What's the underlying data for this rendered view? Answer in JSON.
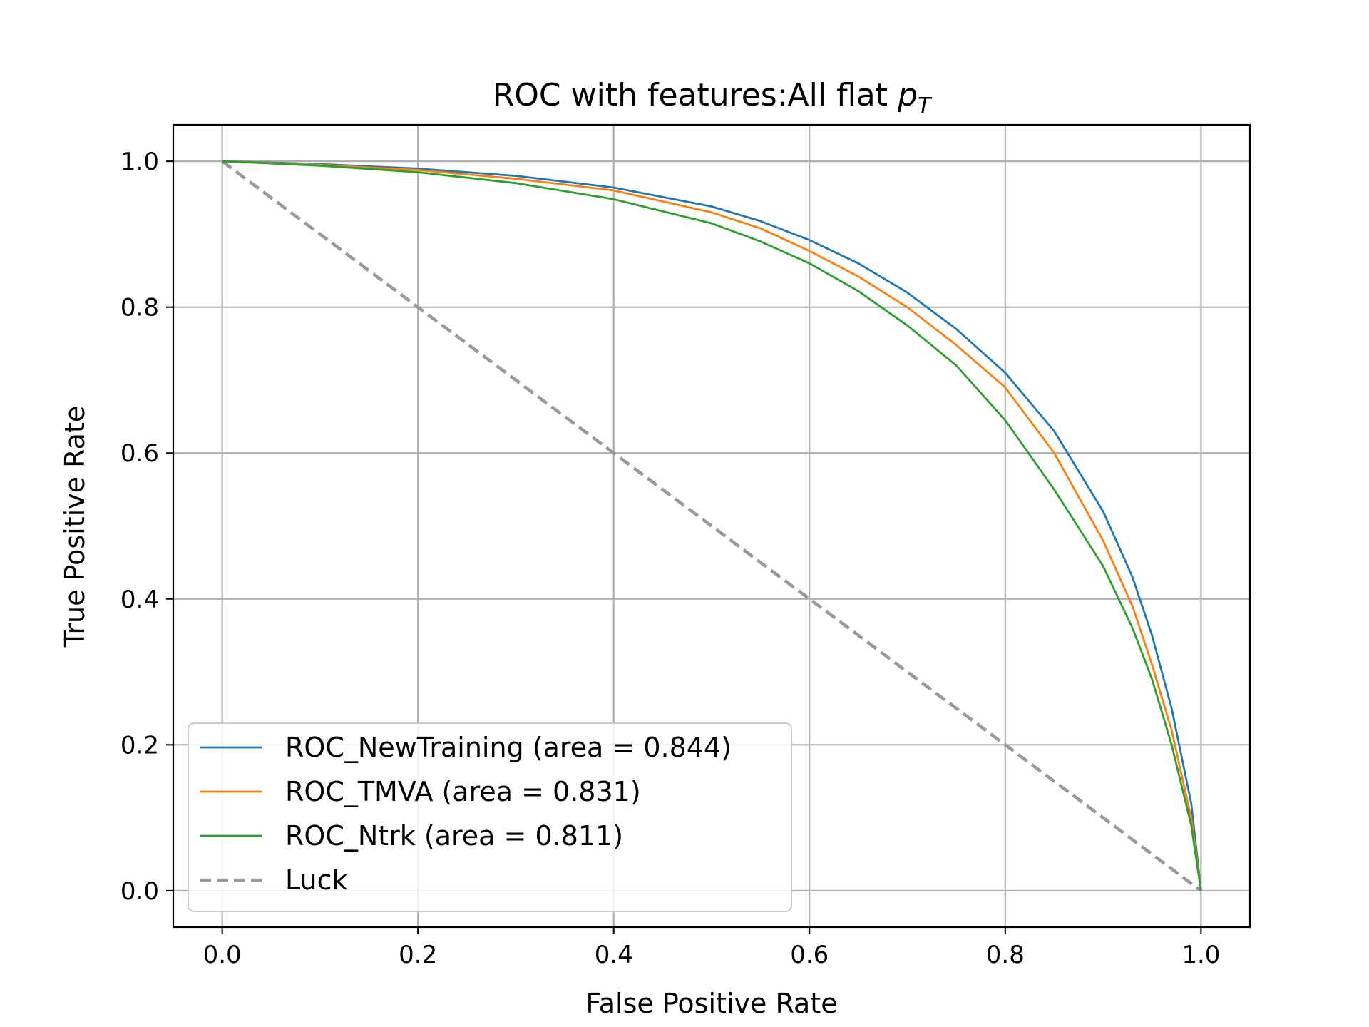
{
  "chart_data": {
    "type": "line",
    "title_main": "ROC with features:All flat ",
    "title_math": "p",
    "title_math_sub": "T",
    "xlabel": "False Positive Rate",
    "ylabel": "True Positive Rate",
    "xlim": [
      -0.05,
      1.05
    ],
    "ylim": [
      -0.05,
      1.05
    ],
    "xticks": [
      0.0,
      0.2,
      0.4,
      0.6,
      0.8,
      1.0
    ],
    "yticks": [
      0.0,
      0.2,
      0.4,
      0.6,
      0.8,
      1.0
    ],
    "xtick_labels": [
      "0.0",
      "0.2",
      "0.4",
      "0.6",
      "0.8",
      "1.0"
    ],
    "ytick_labels": [
      "0.0",
      "0.2",
      "0.4",
      "0.6",
      "0.8",
      "1.0"
    ],
    "grid": true,
    "legend_position": "lower-left",
    "series": [
      {
        "name": "ROC_NewTraining (area = 0.844)",
        "color": "#1f77b4",
        "style": "solid",
        "x": [
          0.0,
          0.1,
          0.2,
          0.3,
          0.4,
          0.5,
          0.55,
          0.6,
          0.65,
          0.7,
          0.75,
          0.8,
          0.85,
          0.9,
          0.93,
          0.95,
          0.97,
          0.99,
          1.0
        ],
        "y": [
          1.0,
          0.996,
          0.99,
          0.98,
          0.964,
          0.938,
          0.918,
          0.892,
          0.86,
          0.82,
          0.77,
          0.71,
          0.63,
          0.52,
          0.43,
          0.35,
          0.25,
          0.12,
          0.0
        ]
      },
      {
        "name": "ROC_TMVA (area = 0.831)",
        "color": "#ff7f0e",
        "style": "solid",
        "x": [
          0.0,
          0.1,
          0.2,
          0.3,
          0.4,
          0.5,
          0.55,
          0.6,
          0.65,
          0.7,
          0.75,
          0.8,
          0.85,
          0.9,
          0.93,
          0.95,
          0.97,
          0.99,
          1.0
        ],
        "y": [
          1.0,
          0.995,
          0.988,
          0.976,
          0.96,
          0.93,
          0.908,
          0.877,
          0.842,
          0.8,
          0.748,
          0.69,
          0.6,
          0.48,
          0.39,
          0.31,
          0.22,
          0.1,
          0.0
        ]
      },
      {
        "name": "ROC_Ntrk (area = 0.811)",
        "color": "#2ca02c",
        "style": "solid",
        "x": [
          0.0,
          0.1,
          0.2,
          0.3,
          0.4,
          0.5,
          0.55,
          0.6,
          0.65,
          0.7,
          0.75,
          0.8,
          0.85,
          0.9,
          0.93,
          0.95,
          0.97,
          0.99,
          1.0
        ],
        "y": [
          1.0,
          0.994,
          0.985,
          0.97,
          0.948,
          0.915,
          0.89,
          0.86,
          0.822,
          0.775,
          0.72,
          0.645,
          0.55,
          0.445,
          0.36,
          0.29,
          0.2,
          0.09,
          0.0
        ]
      },
      {
        "name": "Luck",
        "color": "#999999",
        "style": "dashed",
        "x": [
          0.0,
          1.0
        ],
        "y": [
          1.0,
          0.0
        ]
      }
    ]
  }
}
